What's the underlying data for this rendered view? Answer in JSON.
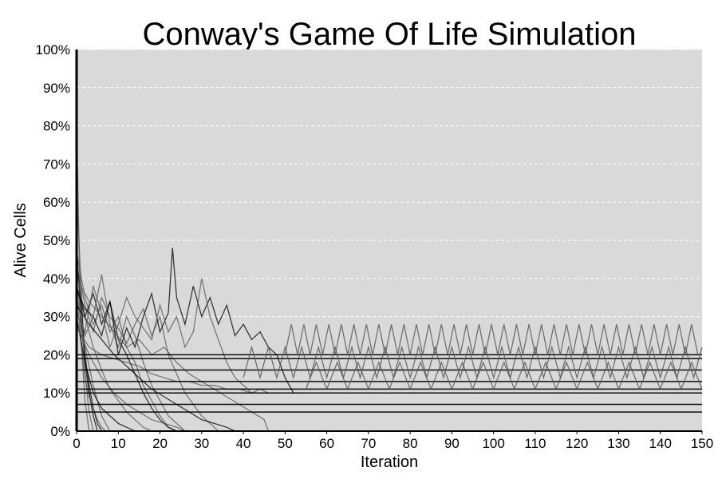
{
  "chart_data": {
    "type": "line",
    "title": "Conway's Game Of Life Simulation",
    "xlabel": "Iteration",
    "ylabel": "Alive Cells",
    "xlim": [
      0,
      150
    ],
    "ylim": [
      0,
      100
    ],
    "x_ticks": [
      "0",
      "10",
      "20",
      "30",
      "40",
      "50",
      "60",
      "70",
      "80",
      "90",
      "100",
      "110",
      "120",
      "130",
      "140",
      "150"
    ],
    "y_ticks": [
      "0%",
      "10%",
      "20%",
      "30%",
      "40%",
      "50%",
      "60%",
      "70%",
      "80%",
      "90%",
      "100%"
    ],
    "grid": "horizontal dashed",
    "legend": "none",
    "colors": {
      "plot_background": "#d9d9d9",
      "grid": "#ffffff",
      "series_dark": "#000000",
      "series_mid": "#555555"
    },
    "series": [
      {
        "values": [
          [
            0,
            49
          ],
          [
            1,
            30
          ],
          [
            2,
            18
          ],
          [
            3,
            10
          ],
          [
            4,
            4
          ],
          [
            5,
            0
          ]
        ]
      },
      {
        "values": [
          [
            0,
            82
          ],
          [
            1,
            25
          ],
          [
            2,
            8
          ],
          [
            3,
            0
          ]
        ]
      },
      {
        "values": [
          [
            0,
            63
          ],
          [
            1,
            40
          ],
          [
            2,
            15
          ],
          [
            3,
            5
          ],
          [
            4,
            0
          ]
        ]
      },
      {
        "values": [
          [
            0,
            45
          ],
          [
            1,
            35
          ],
          [
            2,
            20
          ],
          [
            3,
            12
          ],
          [
            4,
            6
          ],
          [
            5,
            2
          ],
          [
            6,
            0
          ]
        ]
      },
      {
        "values": [
          [
            0,
            40
          ],
          [
            1,
            28
          ],
          [
            2,
            22
          ],
          [
            3,
            17
          ],
          [
            4,
            12
          ],
          [
            5,
            8
          ],
          [
            6,
            4
          ],
          [
            7,
            2
          ],
          [
            8,
            0
          ]
        ]
      },
      {
        "values": [
          [
            0,
            36
          ],
          [
            1,
            24
          ],
          [
            2,
            14
          ],
          [
            3,
            9
          ],
          [
            4,
            6
          ],
          [
            5,
            3
          ],
          [
            6,
            1
          ],
          [
            7,
            0
          ]
        ]
      },
      {
        "values": [
          [
            0,
            30
          ],
          [
            2,
            18
          ],
          [
            4,
            10
          ],
          [
            6,
            6
          ],
          [
            8,
            4
          ],
          [
            10,
            2
          ],
          [
            12,
            1
          ],
          [
            14,
            0
          ]
        ]
      },
      {
        "values": [
          [
            0,
            42
          ],
          [
            2,
            30
          ],
          [
            4,
            22
          ],
          [
            6,
            16
          ],
          [
            8,
            11
          ],
          [
            10,
            8
          ],
          [
            12,
            5
          ],
          [
            14,
            3
          ],
          [
            16,
            1
          ],
          [
            18,
            0
          ]
        ]
      },
      {
        "values": [
          [
            0,
            47
          ],
          [
            2,
            35
          ],
          [
            4,
            28
          ],
          [
            6,
            33
          ],
          [
            8,
            26
          ],
          [
            10,
            30
          ],
          [
            12,
            22
          ],
          [
            14,
            18
          ],
          [
            16,
            12
          ],
          [
            18,
            8
          ],
          [
            20,
            4
          ],
          [
            22,
            1
          ],
          [
            24,
            0
          ]
        ]
      },
      {
        "values": [
          [
            0,
            38
          ],
          [
            2,
            30
          ],
          [
            4,
            36
          ],
          [
            6,
            28
          ],
          [
            8,
            34
          ],
          [
            10,
            24
          ],
          [
            12,
            20
          ],
          [
            14,
            15
          ],
          [
            16,
            10
          ],
          [
            18,
            6
          ],
          [
            20,
            3
          ],
          [
            22,
            1
          ],
          [
            24,
            0
          ]
        ]
      },
      {
        "values": [
          [
            0,
            35
          ],
          [
            2,
            25
          ],
          [
            4,
            30
          ],
          [
            6,
            41
          ],
          [
            8,
            28
          ],
          [
            10,
            22
          ],
          [
            12,
            30
          ],
          [
            14,
            25
          ],
          [
            16,
            18
          ],
          [
            18,
            12
          ],
          [
            20,
            8
          ],
          [
            22,
            4
          ],
          [
            24,
            2
          ],
          [
            26,
            0
          ]
        ]
      },
      {
        "values": [
          [
            0,
            44
          ],
          [
            2,
            33
          ],
          [
            4,
            26
          ],
          [
            6,
            35
          ],
          [
            8,
            30
          ],
          [
            10,
            27
          ],
          [
            12,
            23
          ],
          [
            14,
            28
          ],
          [
            16,
            32
          ],
          [
            18,
            25
          ],
          [
            20,
            30
          ],
          [
            22,
            20
          ],
          [
            24,
            15
          ],
          [
            26,
            10
          ],
          [
            28,
            7
          ],
          [
            30,
            4
          ],
          [
            32,
            2
          ],
          [
            34,
            0
          ]
        ]
      },
      {
        "values": [
          [
            0,
            33
          ],
          [
            3,
            28
          ],
          [
            6,
            24
          ],
          [
            9,
            20
          ],
          [
            12,
            17
          ],
          [
            15,
            14
          ],
          [
            18,
            11
          ],
          [
            21,
            9
          ],
          [
            24,
            7
          ],
          [
            27,
            5
          ],
          [
            30,
            3
          ],
          [
            33,
            2
          ],
          [
            36,
            1
          ],
          [
            38,
            0
          ]
        ]
      },
      {
        "values": [
          [
            0,
            40
          ],
          [
            3,
            34
          ],
          [
            6,
            30
          ],
          [
            9,
            26
          ],
          [
            12,
            22
          ],
          [
            15,
            24
          ],
          [
            18,
            20
          ],
          [
            21,
            22
          ],
          [
            24,
            18
          ],
          [
            27,
            15
          ],
          [
            30,
            13
          ],
          [
            33,
            11
          ],
          [
            36,
            9
          ],
          [
            39,
            7
          ],
          [
            42,
            5
          ],
          [
            45,
            3
          ],
          [
            46,
            0
          ]
        ]
      },
      {
        "values": [
          [
            0,
            28
          ],
          [
            3,
            20
          ],
          [
            6,
            14
          ],
          [
            9,
            10
          ],
          [
            12,
            7
          ],
          [
            15,
            5
          ],
          [
            18,
            3
          ],
          [
            21,
            2
          ],
          [
            24,
            1
          ],
          [
            26,
            0
          ]
        ]
      },
      {
        "values": [
          [
            0,
            37
          ],
          [
            2,
            32
          ],
          [
            4,
            30
          ],
          [
            6,
            25
          ],
          [
            8,
            34
          ],
          [
            10,
            20
          ],
          [
            12,
            27
          ],
          [
            14,
            22
          ],
          [
            16,
            30
          ],
          [
            18,
            36
          ],
          [
            20,
            26
          ],
          [
            22,
            31
          ],
          [
            23,
            48
          ],
          [
            24,
            35
          ],
          [
            26,
            28
          ],
          [
            28,
            38
          ],
          [
            30,
            30
          ],
          [
            32,
            35
          ],
          [
            34,
            28
          ],
          [
            36,
            33
          ],
          [
            38,
            25
          ],
          [
            40,
            28
          ],
          [
            42,
            24
          ],
          [
            44,
            26
          ],
          [
            46,
            22
          ],
          [
            48,
            20
          ],
          [
            50,
            14
          ],
          [
            52,
            10
          ]
        ]
      },
      {
        "values": [
          [
            0,
            31
          ],
          [
            2,
            26
          ],
          [
            4,
            38
          ],
          [
            6,
            31
          ],
          [
            8,
            22
          ],
          [
            10,
            28
          ],
          [
            12,
            35
          ],
          [
            14,
            30
          ],
          [
            16,
            27
          ],
          [
            18,
            24
          ],
          [
            20,
            33
          ],
          [
            22,
            26
          ],
          [
            24,
            30
          ],
          [
            26,
            22
          ],
          [
            28,
            26
          ],
          [
            30,
            40
          ],
          [
            32,
            30
          ],
          [
            34,
            24
          ],
          [
            36,
            18
          ],
          [
            38,
            14
          ],
          [
            40,
            12
          ],
          [
            42,
            10
          ],
          [
            44,
            11
          ],
          [
            46,
            10
          ]
        ]
      },
      {
        "values": [
          [
            0,
            27
          ],
          [
            3,
            22
          ],
          [
            6,
            20
          ],
          [
            9,
            19
          ],
          [
            12,
            18
          ],
          [
            15,
            17
          ],
          [
            18,
            15
          ],
          [
            21,
            14
          ],
          [
            24,
            13
          ],
          [
            27,
            13
          ],
          [
            30,
            12
          ],
          [
            33,
            12
          ],
          [
            36,
            11
          ],
          [
            39,
            11
          ],
          [
            42,
            10
          ],
          [
            46,
            10
          ]
        ]
      },
      {
        "values": [
          [
            0,
            20
          ],
          [
            150,
            20
          ]
        ]
      },
      {
        "values": [
          [
            0,
            16
          ],
          [
            150,
            16
          ]
        ]
      },
      {
        "values": [
          [
            0,
            13
          ],
          [
            150,
            13
          ]
        ]
      },
      {
        "values": [
          [
            0,
            10
          ],
          [
            150,
            10
          ]
        ]
      },
      {
        "values": [
          [
            0,
            7
          ],
          [
            150,
            7
          ]
        ]
      },
      {
        "values": [
          [
            0,
            5
          ],
          [
            150,
            5
          ]
        ]
      },
      {
        "values": [
          [
            0,
            19
          ],
          [
            150,
            19
          ]
        ]
      },
      {
        "values": [
          [
            0,
            11
          ],
          [
            150,
            11
          ]
        ]
      }
    ],
    "oscillating_series": [
      {
        "x_start": 50,
        "x_end": 150,
        "period": 3,
        "low": 20,
        "high": 28
      },
      {
        "x_start": 55,
        "x_end": 150,
        "period": 5,
        "low": 11,
        "high": 18
      },
      {
        "x_start": 40,
        "x_end": 150,
        "period": 4,
        "low": 14,
        "high": 22
      }
    ]
  }
}
